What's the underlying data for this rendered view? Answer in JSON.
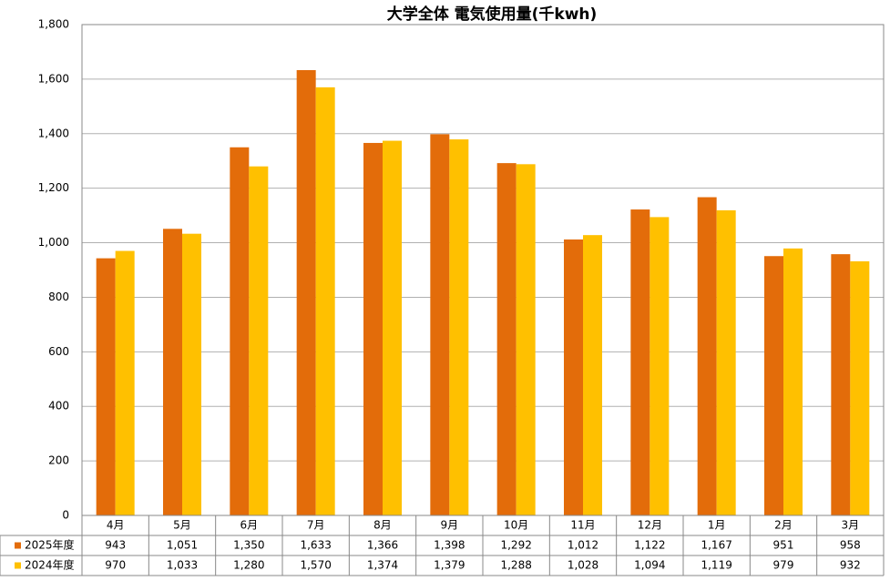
{
  "chart_data": {
    "type": "bar",
    "title": "大学全体 電気使用量(千kwh)",
    "categories": [
      "4月",
      "5月",
      "6月",
      "7月",
      "8月",
      "9月",
      "10月",
      "11月",
      "12月",
      "1月",
      "2月",
      "3月"
    ],
    "series": [
      {
        "name": "2025年度",
        "color": "#e36c0a",
        "values": [
          943,
          1051,
          1350,
          1633,
          1366,
          1398,
          1292,
          1012,
          1122,
          1167,
          951,
          958
        ],
        "value_labels": [
          "943",
          "1,051",
          "1,350",
          "1,633",
          "1,366",
          "1,398",
          "1,292",
          "1,012",
          "1,122",
          "1,167",
          "951",
          "958"
        ]
      },
      {
        "name": "2024年度",
        "color": "#ffc000",
        "values": [
          970,
          1033,
          1280,
          1570,
          1374,
          1379,
          1288,
          1028,
          1094,
          1119,
          979,
          932
        ],
        "value_labels": [
          "970",
          "1,033",
          "1,280",
          "1,570",
          "1,374",
          "1,379",
          "1,288",
          "1,028",
          "1,094",
          "1,119",
          "979",
          "932"
        ]
      }
    ],
    "ylim": [
      0,
      1800
    ],
    "yticks": [
      0,
      200,
      400,
      600,
      800,
      {
        "value": 1000,
        "label": "1,000"
      },
      {
        "value": 1200,
        "label": "1,200"
      },
      {
        "value": 1400,
        "label": "1,400"
      },
      {
        "value": 1600,
        "label": "1,600"
      },
      {
        "value": 1800,
        "label": "1,800"
      }
    ],
    "grid": true
  }
}
